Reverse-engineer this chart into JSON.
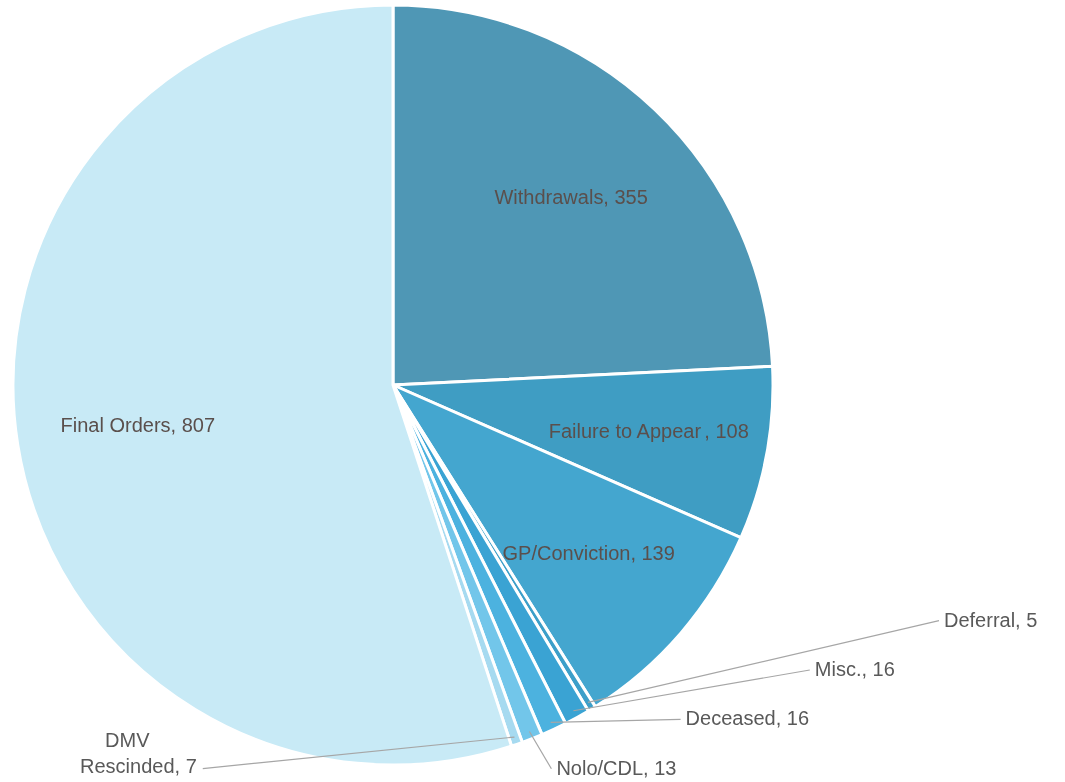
{
  "chart_data": {
    "type": "pie",
    "categories": [
      "Withdrawals",
      "Failure to Appear ",
      "GP/Conviction",
      "Deferral",
      "Misc.",
      "Deceased",
      "Nolo/CDL",
      "DMV Rescinded",
      "Final Orders"
    ],
    "values": [
      355,
      108,
      139,
      5,
      16,
      16,
      13,
      7,
      807
    ],
    "value_labels": [
      ", 355",
      ", 108",
      ", 139",
      ", 5",
      ", 16",
      ", 16",
      ", 13",
      ", 7",
      ", 807"
    ],
    "colors": [
      "#4f97b5",
      "#3f9dc3",
      "#44a6cf",
      "#3c9fc9",
      "#3aa3d3",
      "#4cb2df",
      "#72c6ea",
      "#a6daf0",
      "#c8eaf6"
    ]
  }
}
